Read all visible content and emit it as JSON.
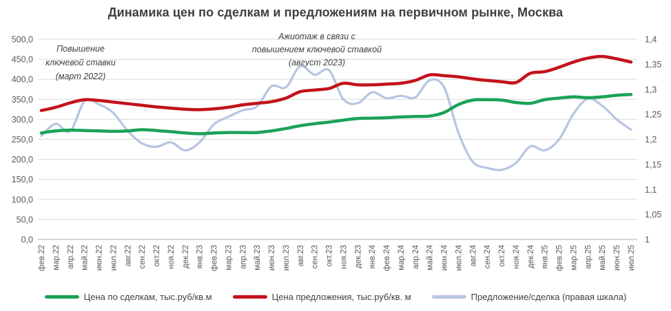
{
  "title": "Динамика цен по сделкам и предложениям на первичном рынке, Москва",
  "annotations": [
    {
      "name": "rate-hike-2022",
      "lines": [
        "Повышение",
        "ключевой ставки",
        "(март 2022)"
      ]
    },
    {
      "name": "rush-aug-2023",
      "lines": [
        "Ажиотаж в связи с",
        "повышением ключевой ставкой",
        "(август 2023)"
      ]
    }
  ],
  "chart_data": {
    "type": "line",
    "smoothed": true,
    "grid": "horizontal",
    "legend_position": "bottom",
    "x": [
      "фев.22",
      "мар.22",
      "апр.22",
      "май.22",
      "июн.22",
      "июл.22",
      "авг.22",
      "сен.22",
      "окт.22",
      "ноя.22",
      "дек.22",
      "янв.23",
      "фев.23",
      "мар.23",
      "апр.23",
      "май.23",
      "июн.23",
      "июл.23",
      "авг.23",
      "сен.23",
      "окт.23",
      "ноя.23",
      "дек.23",
      "янв.24",
      "фев.24",
      "мар.24",
      "апр.24",
      "май.24",
      "июн.24",
      "июл.24",
      "авг.24",
      "сен.24",
      "окт.24",
      "ноя.24",
      "дек.24",
      "янв.25",
      "фев.25",
      "мар.25",
      "апр.25",
      "май.25",
      "июн.25",
      "июл.25"
    ],
    "series": [
      {
        "name": "Цена по сделкам, тыс.руб/кв.м",
        "axis": "left",
        "color": "#1aa258",
        "width": 4.5,
        "values": [
          266,
          271,
          273,
          272,
          271,
          270,
          271,
          274,
          272,
          269,
          266,
          264,
          266,
          267,
          267,
          267,
          271,
          277,
          284,
          289,
          293,
          298,
          302,
          303,
          304,
          306,
          307,
          308,
          317,
          337,
          348,
          349,
          348,
          342,
          340,
          349,
          353,
          356,
          354,
          356,
          360,
          362
        ]
      },
      {
        "name": "Цена предложения, тыс.руб/кв. м",
        "axis": "left",
        "color": "#c3121b",
        "width": 4.5,
        "values": [
          322,
          330,
          341,
          349,
          347,
          343,
          339,
          335,
          331,
          328,
          325,
          324,
          326,
          330,
          336,
          340,
          344,
          353,
          369,
          373,
          377,
          390,
          386,
          386,
          388,
          390,
          397,
          411,
          409,
          406,
          401,
          397,
          394,
          392,
          415,
          419,
          430,
          443,
          453,
          457,
          451,
          443
        ]
      },
      {
        "name": "Предложение/сделка (правая шкала)",
        "axis": "right",
        "color": "#b7c5e2",
        "width": 3.25,
        "values": [
          1.207,
          1.231,
          1.216,
          1.276,
          1.27,
          1.253,
          1.217,
          1.192,
          1.185,
          1.194,
          1.178,
          1.194,
          1.23,
          1.245,
          1.258,
          1.266,
          1.306,
          1.304,
          1.346,
          1.329,
          1.338,
          1.28,
          1.272,
          1.294,
          1.282,
          1.287,
          1.284,
          1.318,
          1.304,
          1.213,
          1.155,
          1.143,
          1.139,
          1.153,
          1.186,
          1.178,
          1.2,
          1.251,
          1.281,
          1.267,
          1.24,
          1.219
        ]
      }
    ],
    "left_axis": {
      "min": 0,
      "max": 500,
      "step": 50,
      "tick_labels": [
        "500,0",
        "450,0",
        "400,0",
        "350,0",
        "300,0",
        "250,0",
        "200,0",
        "150,0",
        "100,0",
        "50,0",
        "0,0"
      ]
    },
    "right_axis": {
      "min": 1,
      "max": 1.4,
      "step": 0.05,
      "tick_labels": [
        "1,4",
        "1,35",
        "1,3",
        "1,25",
        "1,2",
        "1,15",
        "1,1",
        "1,05",
        "1"
      ]
    },
    "colors": {
      "grid": "#d9d9d9",
      "axis_line": "#bfbfbf",
      "tick_text": "#595959",
      "title_text": "#3f3f3f",
      "annotation_text": "#3f3f3f",
      "legend_text": "#404040"
    }
  }
}
